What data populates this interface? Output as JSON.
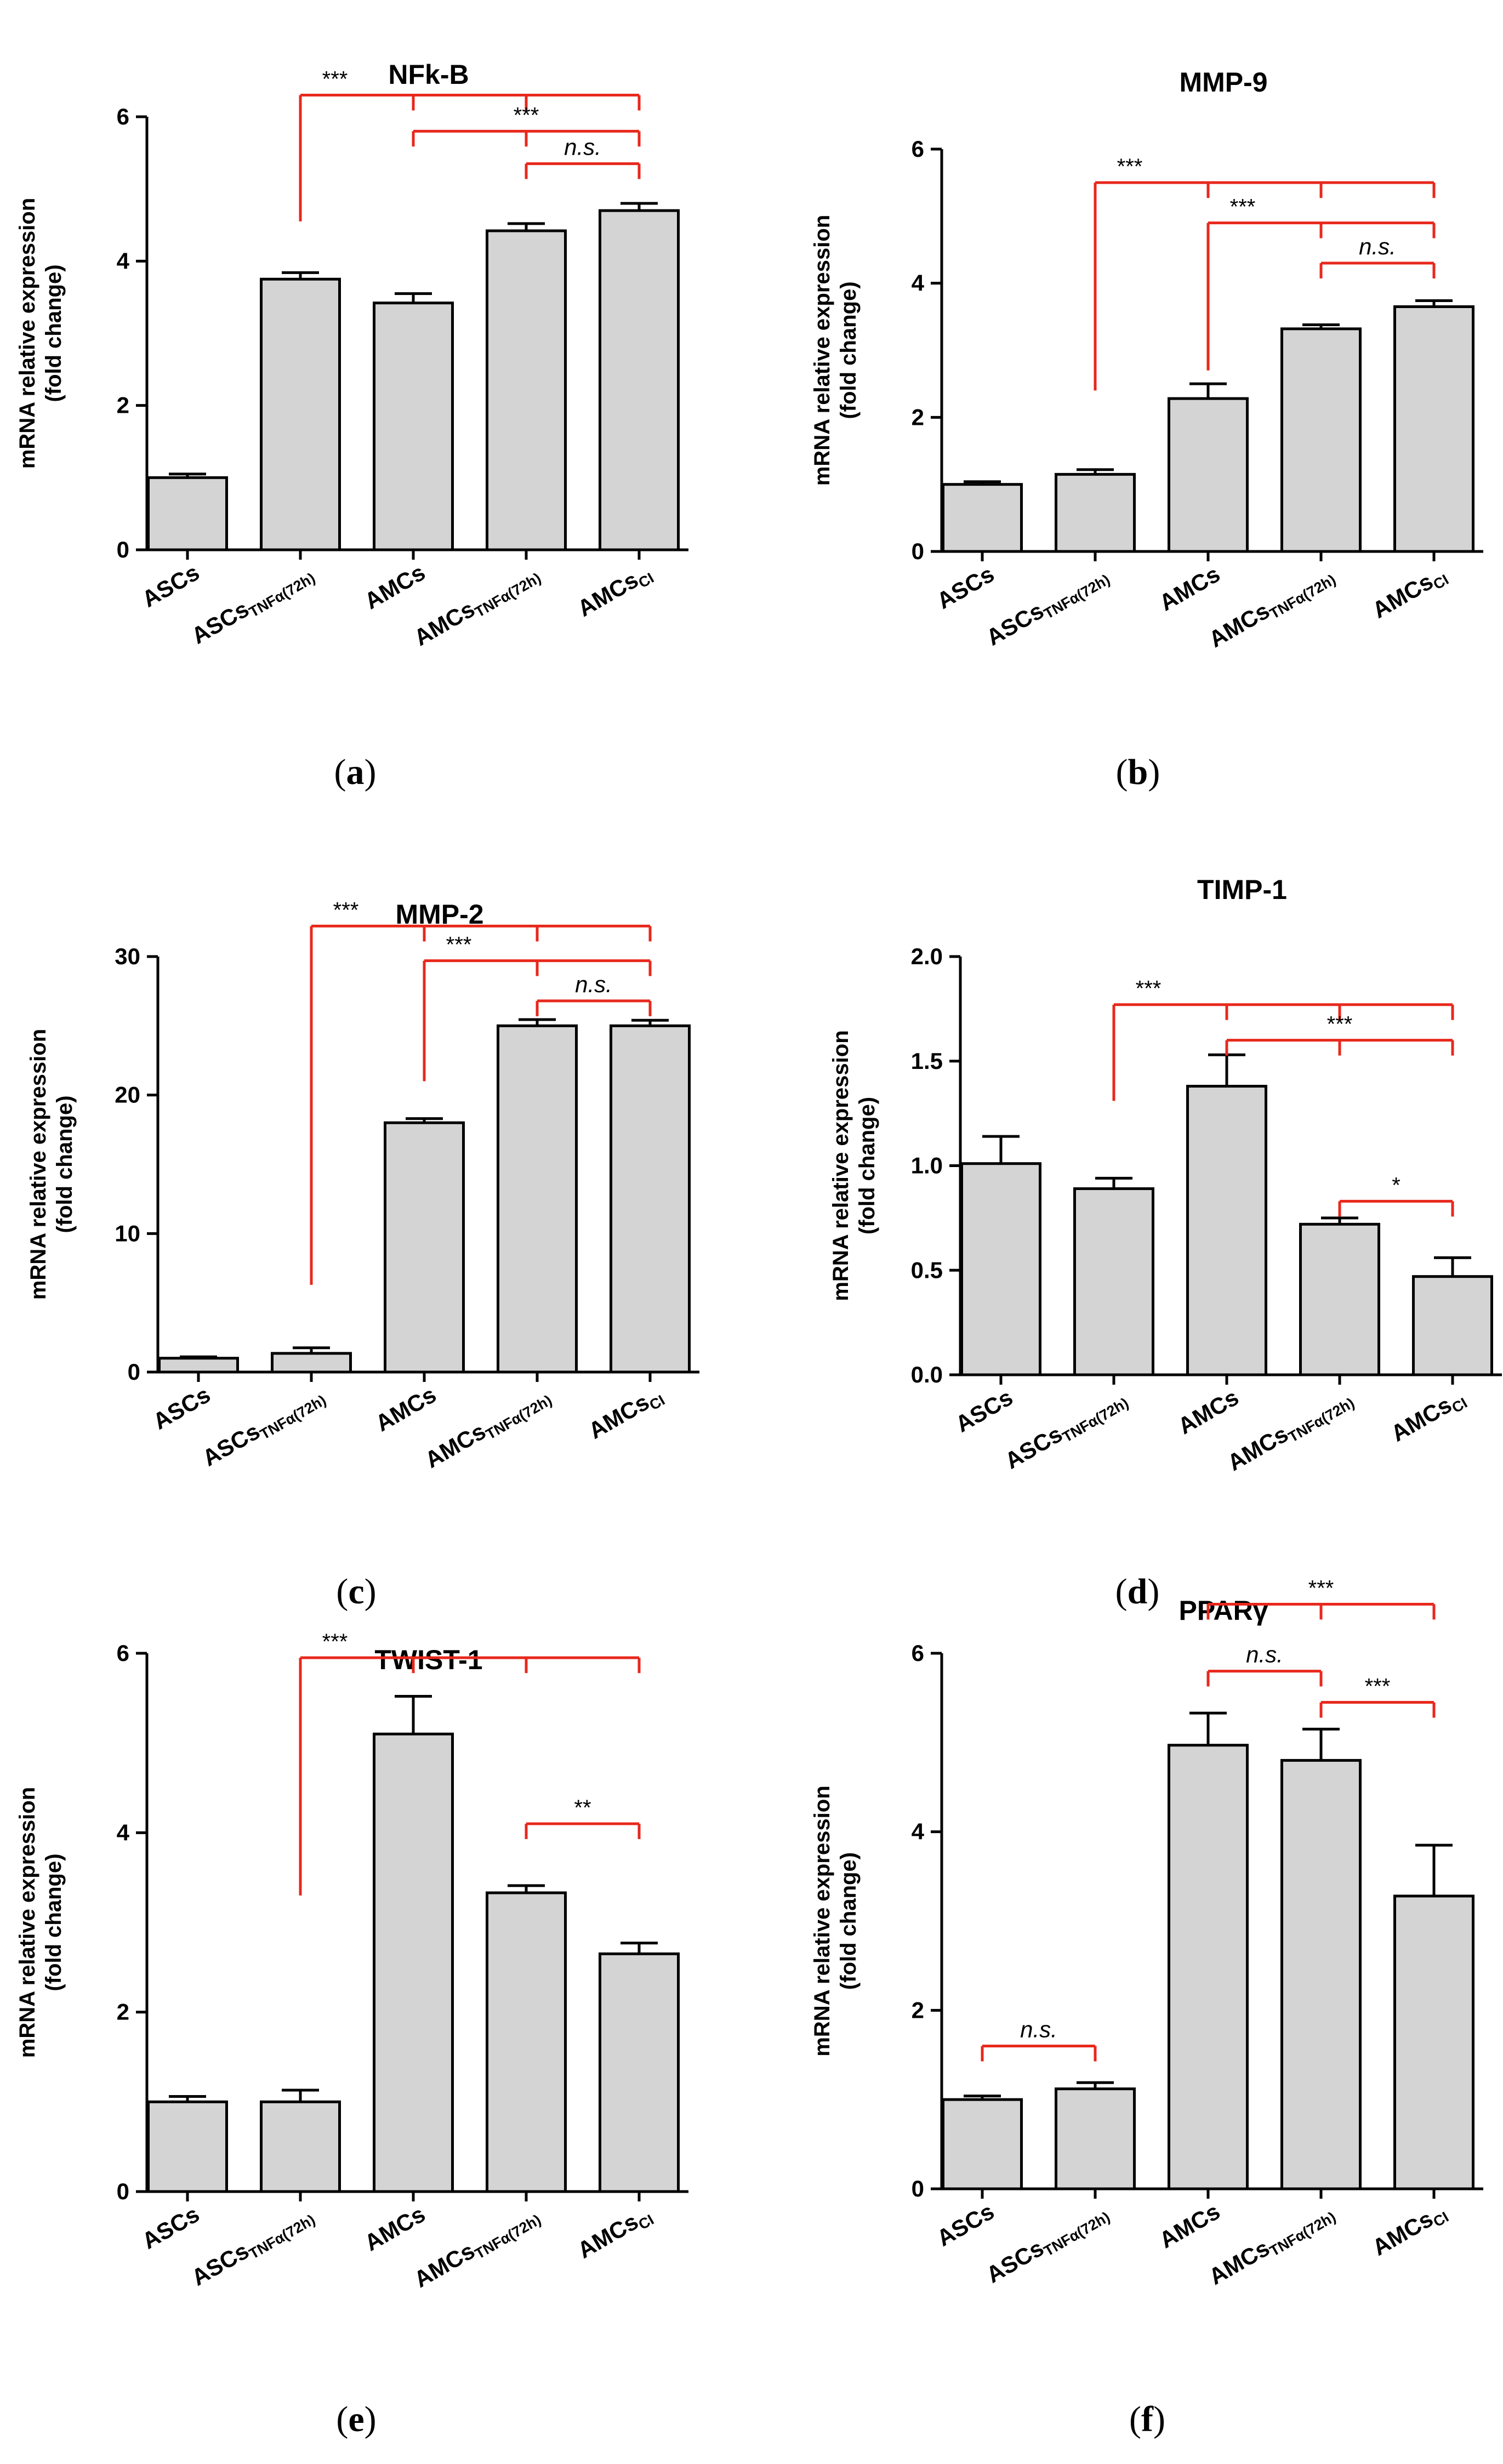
{
  "figure": {
    "ylabel_line1": "mRNA relative expression",
    "ylabel_line2": "(fold change)"
  },
  "colors": {
    "bar_fill": "#d4d4d4",
    "bar_stroke": "#000000",
    "bracket": "#e8281c",
    "text": "#000000"
  },
  "category_labels": [
    {
      "main": "ASCs",
      "sub": ""
    },
    {
      "main": "ASCs",
      "sub": "TNFα(72h)"
    },
    {
      "main": "AMCs",
      "sub": ""
    },
    {
      "main": "AMCs",
      "sub": "TNFα(72h)"
    },
    {
      "main": "AMCs",
      "sub": "CI"
    }
  ],
  "chart_data": [
    {
      "type": "bar",
      "panel_label": "a",
      "title": "NFk-B",
      "ylabel": "mRNA relative expression (fold change)",
      "values": [
        1.0,
        3.75,
        3.42,
        4.42,
        4.7
      ],
      "errors": [
        0.05,
        0.09,
        0.13,
        0.1,
        0.1
      ],
      "ylim": [
        0,
        6
      ],
      "yticks": [
        0,
        2,
        4,
        6
      ],
      "tick_labels": [
        "0",
        "2",
        "4",
        "6"
      ],
      "comparisons": [
        {
          "from": 1,
          "to": 4,
          "label": "***",
          "level": 6.3,
          "drop_from": 4.55,
          "kind": "long"
        },
        {
          "from": 2,
          "to": 4,
          "label": "***",
          "level": 5.8,
          "kind": "mid"
        },
        {
          "from": 3,
          "to": 4,
          "label": "n.s.",
          "level": 5.35,
          "kind": "short"
        }
      ]
    },
    {
      "type": "bar",
      "panel_label": "b",
      "title": "MMP-9",
      "ylabel": "mRNA relative expression (fold change)",
      "values": [
        1.0,
        1.15,
        2.28,
        3.32,
        3.65
      ],
      "errors": [
        0.04,
        0.07,
        0.22,
        0.06,
        0.09
      ],
      "ylim": [
        0,
        6
      ],
      "yticks": [
        0,
        2,
        4,
        6
      ],
      "tick_labels": [
        "0",
        "2",
        "4",
        "6"
      ],
      "comparisons": [
        {
          "from": 1,
          "to": 4,
          "label": "***",
          "level": 5.5,
          "drop_from": 2.4,
          "kind": "long"
        },
        {
          "from": 2,
          "to": 4,
          "label": "***",
          "level": 4.9,
          "drop_from": 2.7,
          "kind": "long"
        },
        {
          "from": 3,
          "to": 4,
          "label": "n.s.",
          "level": 4.3,
          "kind": "short"
        }
      ]
    },
    {
      "type": "bar",
      "panel_label": "c",
      "title": "MMP-2",
      "ylabel": "mRNA relative expression (fold change)",
      "values": [
        1.0,
        1.35,
        18.0,
        25.0,
        25.0
      ],
      "errors": [
        0.1,
        0.4,
        0.3,
        0.45,
        0.4
      ],
      "ylim": [
        0,
        30
      ],
      "yticks": [
        0,
        10,
        20,
        30
      ],
      "tick_labels": [
        "0",
        "10",
        "20",
        "30"
      ],
      "comparisons": [
        {
          "from": 1,
          "to": 4,
          "label": "***",
          "level": 32.2,
          "drop_from": 6.3,
          "kind": "long"
        },
        {
          "from": 2,
          "to": 4,
          "label": "***",
          "level": 29.7,
          "drop_from": 21.0,
          "kind": "long"
        },
        {
          "from": 3,
          "to": 4,
          "label": "n.s.",
          "level": 26.8,
          "kind": "short"
        }
      ]
    },
    {
      "type": "bar",
      "panel_label": "d",
      "title": "TIMP-1",
      "ylabel": "mRNA relative expression (fold change)",
      "values": [
        1.01,
        0.89,
        1.38,
        0.72,
        0.47
      ],
      "errors": [
        0.13,
        0.05,
        0.15,
        0.03,
        0.09
      ],
      "ylim": [
        0,
        2.0
      ],
      "yticks": [
        0,
        0.5,
        1.0,
        1.5,
        2.0
      ],
      "tick_labels": [
        "0.0",
        "0.5",
        "1.0",
        "1.5",
        "2.0"
      ],
      "comparisons": [
        {
          "from": 1,
          "to": 4,
          "label": "***",
          "level": 1.77,
          "drop_from": 1.31,
          "kind": "long"
        },
        {
          "from": 2,
          "to": 4,
          "label": "***",
          "level": 1.6,
          "kind": "mid"
        },
        {
          "from": 3,
          "to": 4,
          "label": "*",
          "level": 0.83,
          "kind": "short"
        }
      ]
    },
    {
      "type": "bar",
      "panel_label": "e",
      "title": "TWIST-1",
      "ylabel": "mRNA relative expression (fold change)",
      "values": [
        1.0,
        1.0,
        5.1,
        3.33,
        2.65
      ],
      "errors": [
        0.06,
        0.13,
        0.42,
        0.08,
        0.12
      ],
      "ylim": [
        0,
        6
      ],
      "yticks": [
        0,
        2,
        4,
        6
      ],
      "tick_labels": [
        "0",
        "2",
        "4",
        "6"
      ],
      "comparisons": [
        {
          "from": 1,
          "to": 4,
          "label": "***",
          "level": 5.95,
          "drop_from": 3.3,
          "kind": "spine"
        },
        {
          "from": 3,
          "to": 4,
          "label": "**",
          "level": 4.1,
          "kind": "short"
        }
      ]
    },
    {
      "type": "bar",
      "panel_label": "f",
      "title": "PPARγ",
      "ylabel": "mRNA relative expression (fold change)",
      "values": [
        1.0,
        1.12,
        4.97,
        4.8,
        3.28
      ],
      "errors": [
        0.04,
        0.07,
        0.36,
        0.35,
        0.57
      ],
      "ylim": [
        0,
        6
      ],
      "yticks": [
        0,
        2,
        4,
        6
      ],
      "tick_labels": [
        "0",
        "2",
        "4",
        "6"
      ],
      "comparisons": [
        {
          "from": 0,
          "to": 1,
          "label": "n.s.",
          "level": 1.6,
          "kind": "short"
        },
        {
          "from": 2,
          "to": 4,
          "label": "***",
          "level": 6.55,
          "kind": "mid"
        },
        {
          "from": 2,
          "to": 3,
          "label": "n.s.",
          "level": 5.8,
          "kind": "short"
        },
        {
          "from": 3,
          "to": 4,
          "label": "***",
          "level": 5.45,
          "kind": "short"
        }
      ]
    }
  ]
}
